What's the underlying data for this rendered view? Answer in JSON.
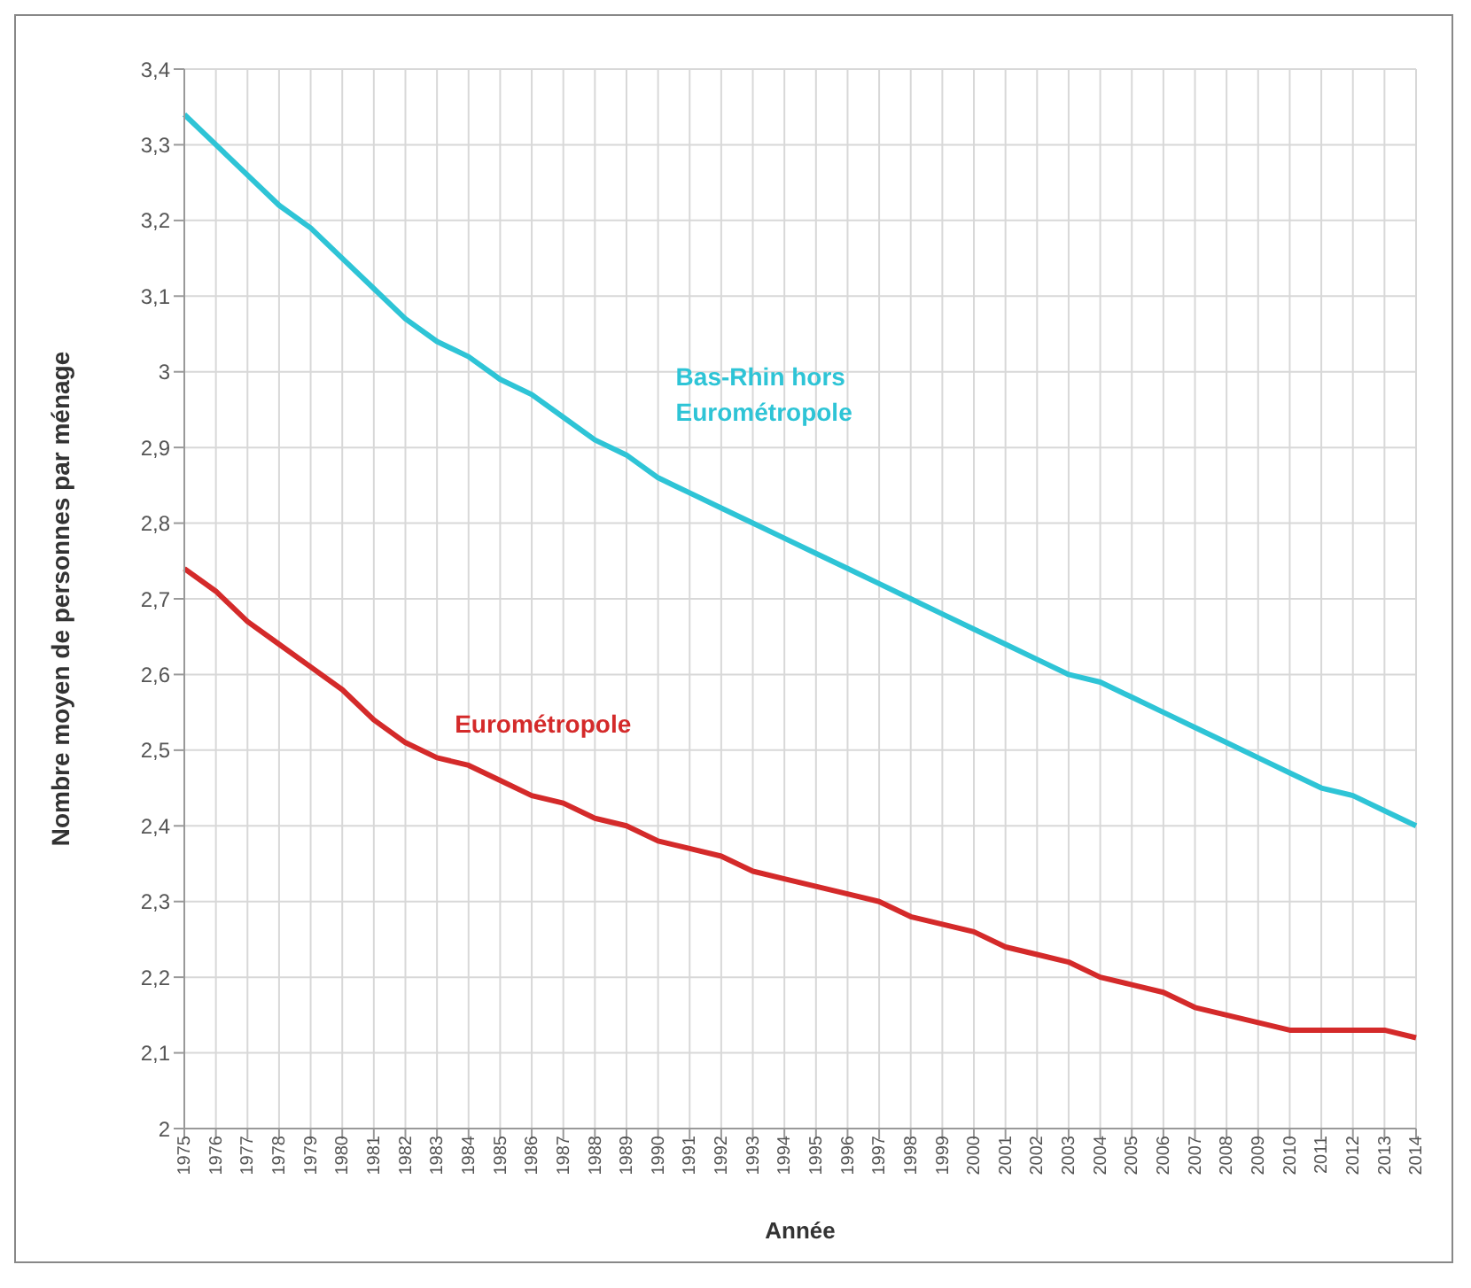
{
  "chart_data": {
    "type": "line",
    "xlabel": "Année",
    "ylabel": "Nombre moyen de personnes par ménage",
    "categories": [
      "1975",
      "1976",
      "1977",
      "1978",
      "1979",
      "1980",
      "1981",
      "1982",
      "1983",
      "1984",
      "1985",
      "1986",
      "1987",
      "1988",
      "1989",
      "1990",
      "1991",
      "1992",
      "1993",
      "1994",
      "1995",
      "1996",
      "1997",
      "1998",
      "1999",
      "2000",
      "2001",
      "2002",
      "2003",
      "2004",
      "2005",
      "2006",
      "2007",
      "2008",
      "2009",
      "2010",
      "2011",
      "2012",
      "2013",
      "2014"
    ],
    "series": [
      {
        "name": "Bas-Rhin hors Eurométropole",
        "color": "#2ec4d6",
        "values": [
          3.34,
          3.3,
          3.26,
          3.22,
          3.19,
          3.15,
          3.11,
          3.07,
          3.04,
          3.02,
          2.99,
          2.97,
          2.94,
          2.91,
          2.89,
          2.86,
          2.84,
          2.82,
          2.8,
          2.78,
          2.76,
          2.74,
          2.72,
          2.7,
          2.68,
          2.66,
          2.64,
          2.62,
          2.6,
          2.59,
          2.57,
          2.55,
          2.53,
          2.51,
          2.49,
          2.47,
          2.45,
          2.44,
          2.42,
          2.4
        ]
      },
      {
        "name": "Eurométropole",
        "color": "#d42a2a",
        "values": [
          2.74,
          2.71,
          2.67,
          2.64,
          2.61,
          2.58,
          2.54,
          2.51,
          2.49,
          2.48,
          2.46,
          2.44,
          2.43,
          2.41,
          2.4,
          2.38,
          2.37,
          2.36,
          2.34,
          2.33,
          2.32,
          2.31,
          2.3,
          2.28,
          2.27,
          2.26,
          2.24,
          2.23,
          2.22,
          2.2,
          2.19,
          2.18,
          2.16,
          2.15,
          2.14,
          2.13,
          2.13,
          2.13,
          2.13,
          2.12
        ]
      }
    ],
    "ylim": [
      2,
      3.4
    ],
    "yticks": [
      {
        "value": 2,
        "label": "2"
      },
      {
        "value": 2.1,
        "label": "2,1"
      },
      {
        "value": 2.2,
        "label": "2,2"
      },
      {
        "value": 2.3,
        "label": "2,3"
      },
      {
        "value": 2.4,
        "label": "2,4"
      },
      {
        "value": 2.5,
        "label": "2,5"
      },
      {
        "value": 2.6,
        "label": "2,6"
      },
      {
        "value": 2.7,
        "label": "2,7"
      },
      {
        "value": 2.8,
        "label": "2,8"
      },
      {
        "value": 2.9,
        "label": "2,9"
      },
      {
        "value": 3,
        "label": "3"
      },
      {
        "value": 3.1,
        "label": "3,1"
      },
      {
        "value": 3.2,
        "label": "3,2"
      },
      {
        "value": 3.3,
        "label": "3,3"
      },
      {
        "value": 3.4,
        "label": "3,4"
      }
    ],
    "grid": true,
    "legend": false,
    "marker": "none",
    "line_style": "solid"
  }
}
